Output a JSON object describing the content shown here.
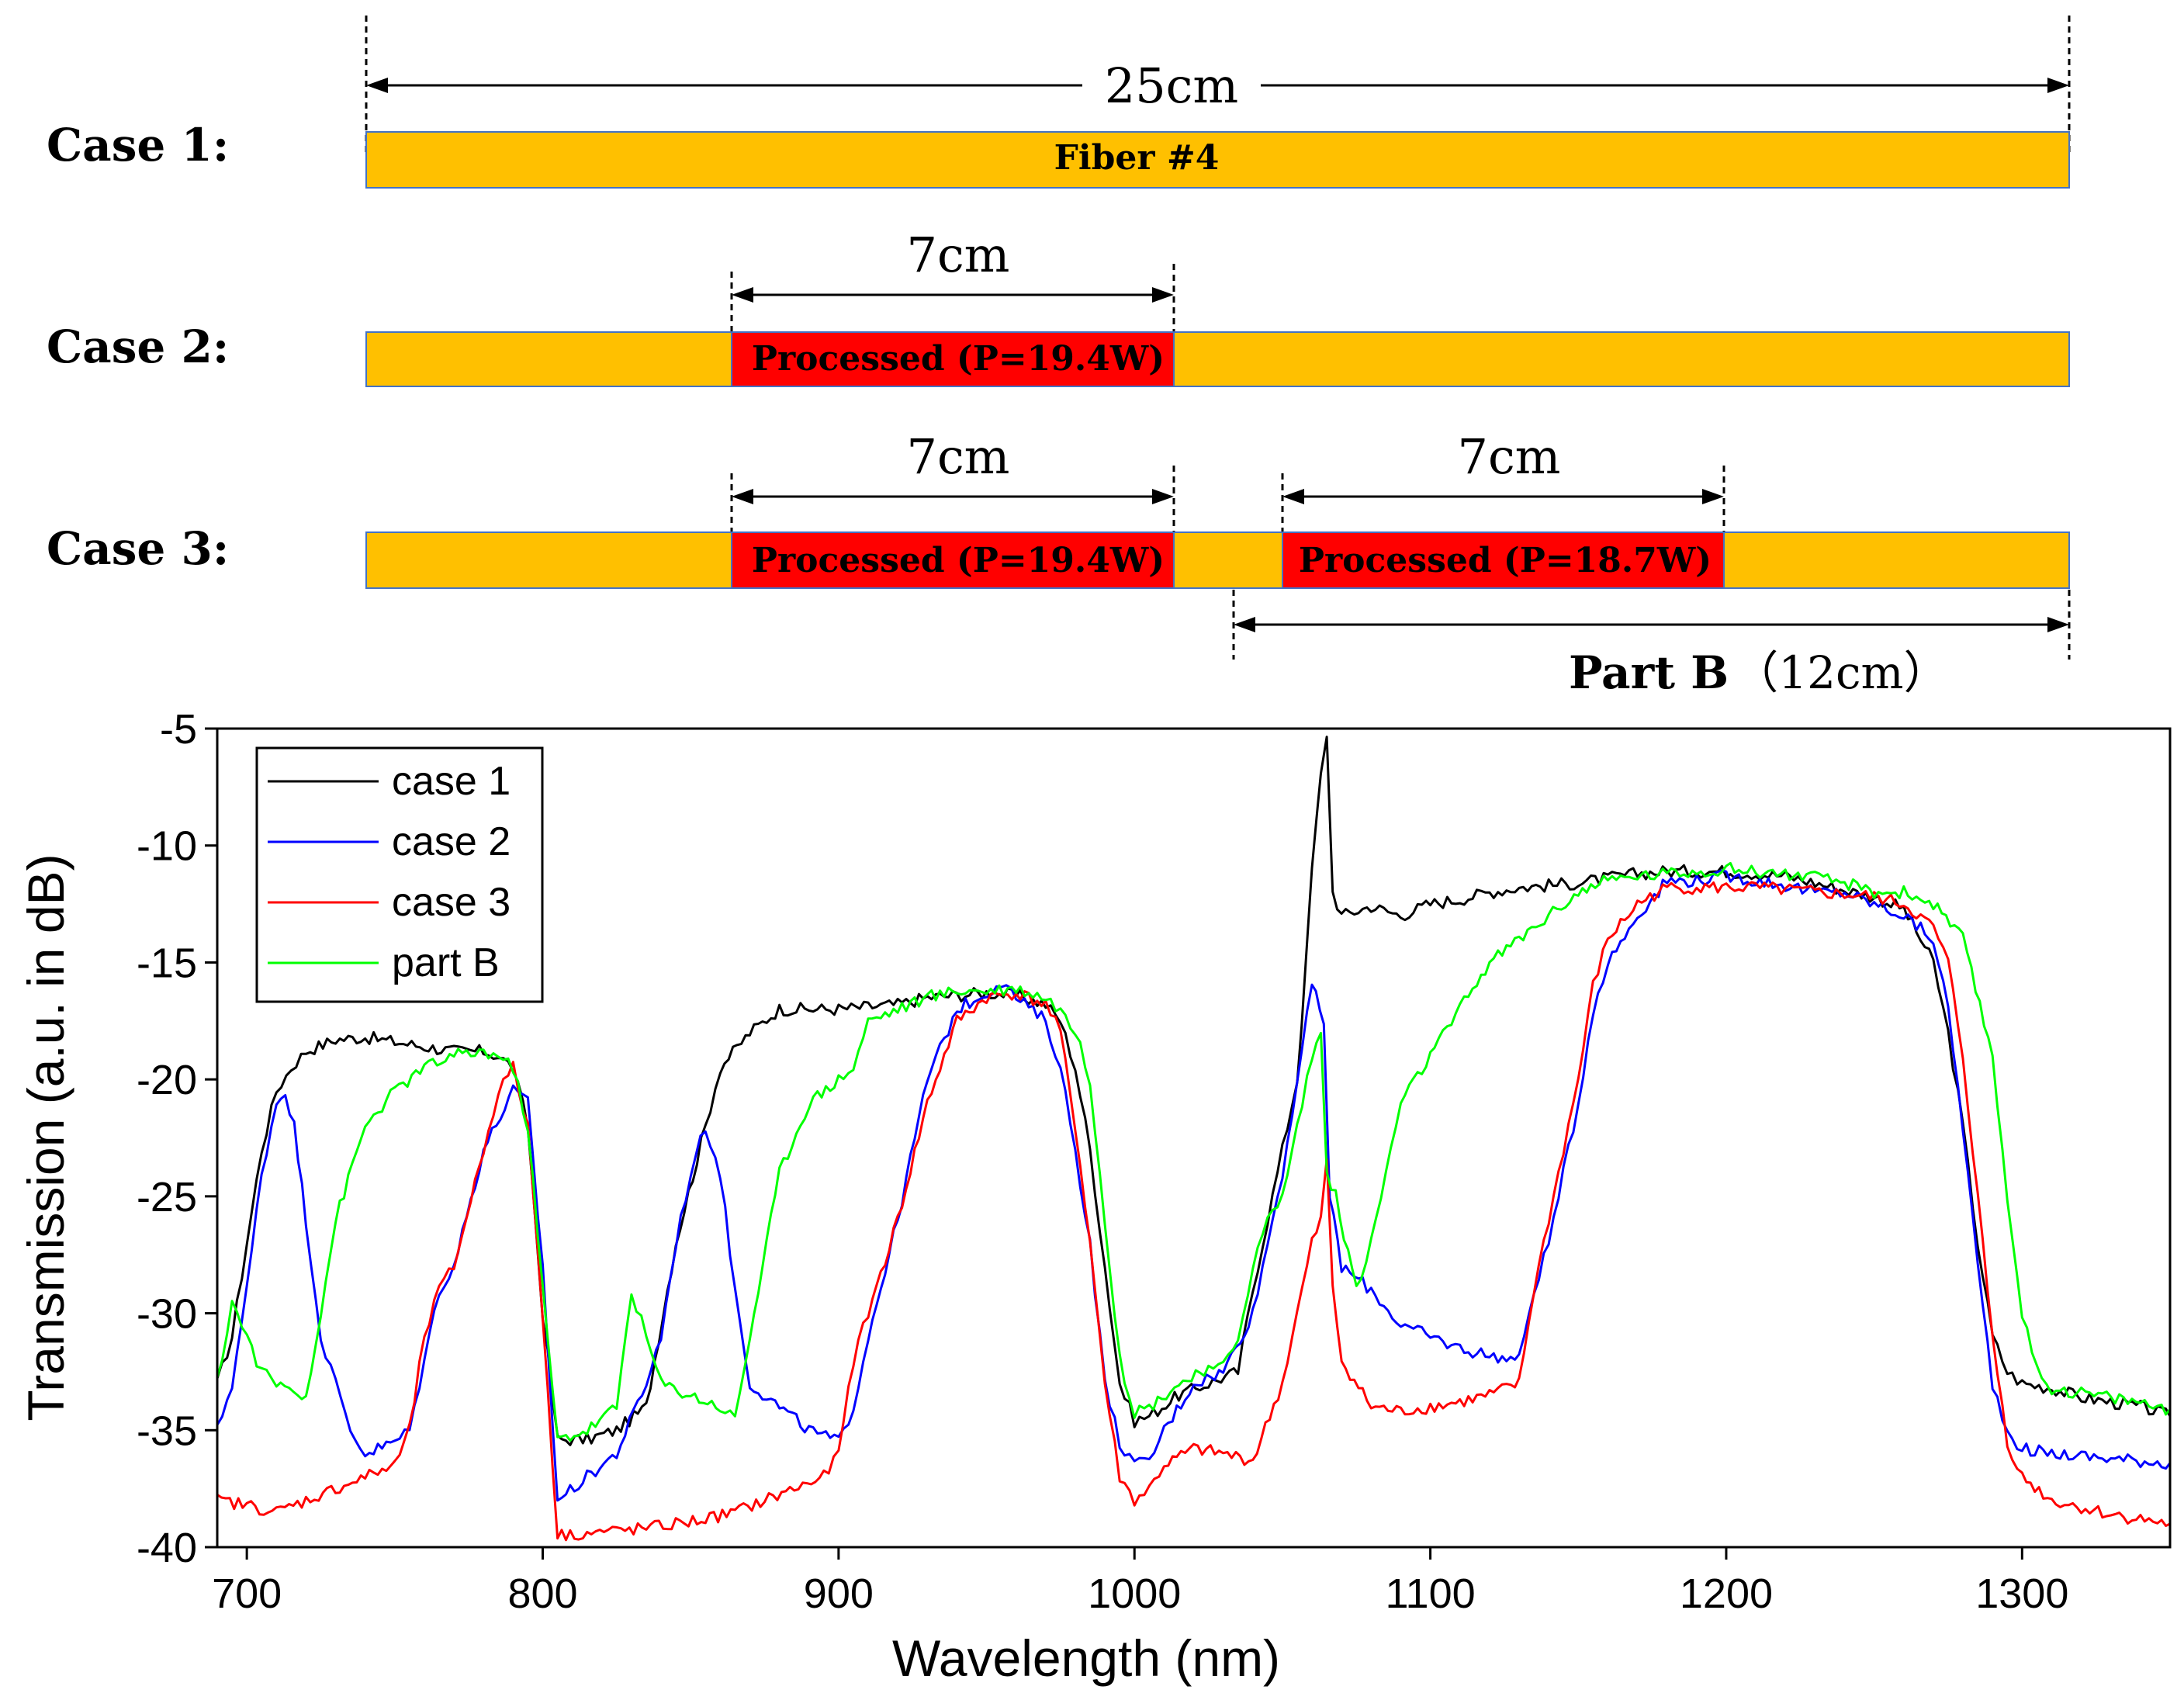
{
  "diagram": {
    "case1_label": "Case 1:",
    "case2_label": "Case 2:",
    "case3_label": "Case 3:",
    "fiber_label": "Fiber #4",
    "total_length": "25cm",
    "segment1_length": "7cm",
    "segment2_length": "7cm",
    "segment3_length": "7cm",
    "processed1_label": "Processed (P=19.4W)",
    "processed2_label": "Processed (P=19.4W)",
    "processed3_label": "Processed (P=18.7W)",
    "partb_bold": "Part B",
    "partb_len": "（12cm）",
    "colors": {
      "fiber": "#FFC000",
      "processed": "#FF0000",
      "border": "#4472C4"
    }
  },
  "chart_data": {
    "type": "line",
    "title": "",
    "xlabel": "Wavelength (nm)",
    "ylabel": "Transmission (a.u. in dB)",
    "xlim": [
      690,
      1350
    ],
    "ylim": [
      -40,
      -5
    ],
    "xticks": [
      700,
      800,
      900,
      1000,
      1100,
      1200,
      1300
    ],
    "yticks": [
      -5,
      -10,
      -15,
      -20,
      -25,
      -30,
      -35,
      -40
    ],
    "legend_position": "top-left",
    "series": [
      {
        "name": "case 1",
        "color": "#000000",
        "x": [
          690,
          695,
          700,
          705,
          710,
          715,
          720,
          730,
          740,
          750,
          760,
          770,
          780,
          785,
          790,
          795,
          800,
          805,
          815,
          825,
          835,
          845,
          855,
          860,
          870,
          880,
          890,
          900,
          910,
          920,
          930,
          940,
          950,
          960,
          970,
          975,
          980,
          985,
          990,
          995,
          1000,
          1005,
          1015,
          1025,
          1035,
          1040,
          1045,
          1050,
          1055,
          1058,
          1060,
          1063,
          1065,
          1067,
          1070,
          1080,
          1090,
          1100,
          1110,
          1120,
          1130,
          1140,
          1150,
          1160,
          1170,
          1180,
          1190,
          1200,
          1210,
          1220,
          1230,
          1240,
          1250,
          1260,
          1270,
          1275,
          1280,
          1285,
          1290,
          1295,
          1300,
          1310,
          1320,
          1330,
          1340,
          1350
        ],
        "y": [
          -33,
          -31,
          -27,
          -23,
          -20.5,
          -19.5,
          -18.8,
          -18.3,
          -18.2,
          -18.4,
          -18.6,
          -18.8,
          -18.8,
          -19,
          -19.5,
          -22,
          -30,
          -35.4,
          -35.4,
          -35,
          -34,
          -27,
          -22,
          -19.5,
          -18,
          -17,
          -17,
          -17,
          -16.9,
          -16.8,
          -16.5,
          -16.4,
          -16.3,
          -16.4,
          -16.8,
          -17.5,
          -19.5,
          -23,
          -28,
          -33,
          -34.6,
          -34.4,
          -33.5,
          -33,
          -32.5,
          -29,
          -26,
          -23,
          -20,
          -15,
          -11,
          -7,
          -5.2,
          -12,
          -13,
          -12.6,
          -13,
          -12.5,
          -12.3,
          -12,
          -11.8,
          -11.7,
          -11.6,
          -11.4,
          -11.2,
          -11.1,
          -11.1,
          -11.1,
          -11.2,
          -11.3,
          -11.6,
          -11.9,
          -12.2,
          -12.7,
          -15,
          -18,
          -22,
          -27,
          -31,
          -32.5,
          -33,
          -33.2,
          -33.6,
          -33.8,
          -34,
          -34.4
        ]
      },
      {
        "name": "case 2",
        "color": "#0000FF",
        "x": [
          690,
          695,
          700,
          705,
          710,
          713,
          716,
          720,
          725,
          730,
          735,
          740,
          750,
          755,
          760,
          765,
          770,
          780,
          790,
          795,
          800,
          805,
          815,
          825,
          835,
          840,
          845,
          850,
          855,
          860,
          865,
          870,
          880,
          890,
          900,
          905,
          910,
          920,
          930,
          940,
          950,
          955,
          960,
          970,
          975,
          980,
          985,
          990,
          995,
          1000,
          1005,
          1010,
          1020,
          1030,
          1040,
          1045,
          1050,
          1055,
          1060,
          1064,
          1066,
          1070,
          1080,
          1090,
          1100,
          1110,
          1120,
          1130,
          1135,
          1140,
          1145,
          1150,
          1155,
          1160,
          1170,
          1180,
          1190,
          1200,
          1210,
          1220,
          1230,
          1240,
          1250,
          1260,
          1270,
          1275,
          1280,
          1285,
          1290,
          1295,
          1300,
          1310,
          1320,
          1330,
          1340,
          1350
        ],
        "y": [
          -35,
          -33,
          -29,
          -24,
          -21,
          -20.5,
          -22,
          -26,
          -31,
          -33,
          -35,
          -36,
          -35.5,
          -35,
          -32,
          -29,
          -28,
          -23,
          -20.5,
          -21,
          -28,
          -38,
          -37,
          -36,
          -33,
          -31,
          -27,
          -24,
          -22,
          -24,
          -29,
          -33,
          -34,
          -35,
          -35.5,
          -34,
          -31,
          -26,
          -20,
          -17,
          -16.3,
          -15.8,
          -16.5,
          -17.5,
          -19.5,
          -23,
          -27,
          -33,
          -35.5,
          -36.5,
          -36.3,
          -35,
          -33,
          -32.5,
          -30,
          -27,
          -24,
          -20,
          -16,
          -17.5,
          -25,
          -28,
          -29,
          -30.5,
          -31,
          -31.5,
          -31.8,
          -32,
          -29,
          -27,
          -24,
          -21,
          -17,
          -15,
          -13,
          -11.5,
          -11.5,
          -11.3,
          -11.5,
          -11.7,
          -12,
          -12,
          -12.5,
          -13,
          -14,
          -17,
          -22,
          -28,
          -33,
          -35,
          -35.8,
          -36,
          -36.1,
          -36.2,
          -36.3,
          -36.4
        ]
      },
      {
        "name": "case 3",
        "color": "#FF0000",
        "x": [
          690,
          700,
          710,
          720,
          730,
          740,
          750,
          755,
          760,
          765,
          770,
          780,
          785,
          790,
          795,
          800,
          805,
          815,
          825,
          835,
          845,
          855,
          865,
          875,
          885,
          895,
          900,
          905,
          910,
          920,
          930,
          940,
          950,
          960,
          970,
          975,
          980,
          985,
          990,
          995,
          1000,
          1005,
          1010,
          1020,
          1030,
          1040,
          1050,
          1055,
          1060,
          1063,
          1065,
          1067,
          1070,
          1080,
          1090,
          1100,
          1110,
          1120,
          1130,
          1135,
          1140,
          1145,
          1150,
          1155,
          1160,
          1170,
          1180,
          1190,
          1200,
          1210,
          1220,
          1230,
          1240,
          1250,
          1260,
          1270,
          1275,
          1280,
          1285,
          1290,
          1295,
          1300,
          1310,
          1320,
          1330,
          1340,
          1350
        ],
        "y": [
          -38,
          -38.2,
          -38.5,
          -38,
          -37.5,
          -37,
          -36.5,
          -35,
          -31,
          -29,
          -28,
          -23,
          -20.5,
          -19.5,
          -22,
          -30,
          -39.5,
          -39.4,
          -39.3,
          -39.2,
          -39,
          -38.8,
          -38.5,
          -38,
          -37.5,
          -37,
          -36,
          -32,
          -30,
          -26,
          -21,
          -17.5,
          -16.5,
          -16.3,
          -16.8,
          -18,
          -22,
          -27,
          -33,
          -37,
          -38,
          -37.5,
          -36.5,
          -35.8,
          -36,
          -36.3,
          -33,
          -30,
          -27,
          -26,
          -23.5,
          -29,
          -32,
          -34,
          -34.2,
          -34,
          -33.8,
          -33.5,
          -33,
          -29,
          -26,
          -23,
          -20,
          -16,
          -14,
          -12.5,
          -11.8,
          -11.8,
          -11.8,
          -11.8,
          -11.9,
          -12,
          -12.1,
          -12.2,
          -12.5,
          -13.5,
          -15,
          -19,
          -25,
          -31,
          -35.5,
          -37,
          -38,
          -38.3,
          -38.6,
          -38.8,
          -39
        ]
      },
      {
        "name": "part B",
        "color": "#00FF00",
        "x": [
          690,
          695,
          700,
          705,
          710,
          720,
          725,
          730,
          740,
          750,
          760,
          770,
          780,
          785,
          790,
          795,
          800,
          805,
          815,
          825,
          830,
          835,
          840,
          850,
          860,
          865,
          870,
          880,
          890,
          900,
          905,
          910,
          920,
          930,
          940,
          950,
          960,
          970,
          975,
          980,
          985,
          990,
          995,
          1000,
          1005,
          1015,
          1025,
          1030,
          1035,
          1040,
          1045,
          1050,
          1055,
          1060,
          1063,
          1065,
          1068,
          1075,
          1080,
          1085,
          1090,
          1100,
          1110,
          1120,
          1130,
          1140,
          1150,
          1160,
          1170,
          1180,
          1190,
          1200,
          1210,
          1220,
          1230,
          1240,
          1250,
          1260,
          1270,
          1280,
          1290,
          1295,
          1300,
          1305,
          1310,
          1320,
          1330,
          1340,
          1350
        ],
        "y": [
          -33,
          -29.5,
          -31,
          -32.5,
          -33,
          -33.5,
          -30,
          -26,
          -22,
          -20.5,
          -19.5,
          -19,
          -18.8,
          -19,
          -19.5,
          -22,
          -29,
          -35.4,
          -35,
          -34,
          -29,
          -31,
          -33,
          -33.5,
          -34,
          -34.5,
          -31,
          -24,
          -21,
          -20,
          -19.5,
          -17.5,
          -17,
          -16.5,
          -16.2,
          -16.2,
          -16.1,
          -16.5,
          -17,
          -18,
          -20,
          -26,
          -32,
          -34.2,
          -34,
          -33,
          -32.5,
          -32.3,
          -31,
          -28,
          -26,
          -25,
          -22,
          -19,
          -18,
          -24,
          -25,
          -29,
          -27,
          -24,
          -21,
          -19,
          -17,
          -15,
          -14,
          -13,
          -12,
          -11.5,
          -11.3,
          -11.2,
          -11.1,
          -11,
          -11.1,
          -11.2,
          -11.4,
          -11.6,
          -12,
          -12,
          -12.5,
          -14,
          -19,
          -25,
          -30,
          -32.5,
          -33.2,
          -33.4,
          -33.6,
          -33.8,
          -34.1
        ]
      }
    ]
  }
}
